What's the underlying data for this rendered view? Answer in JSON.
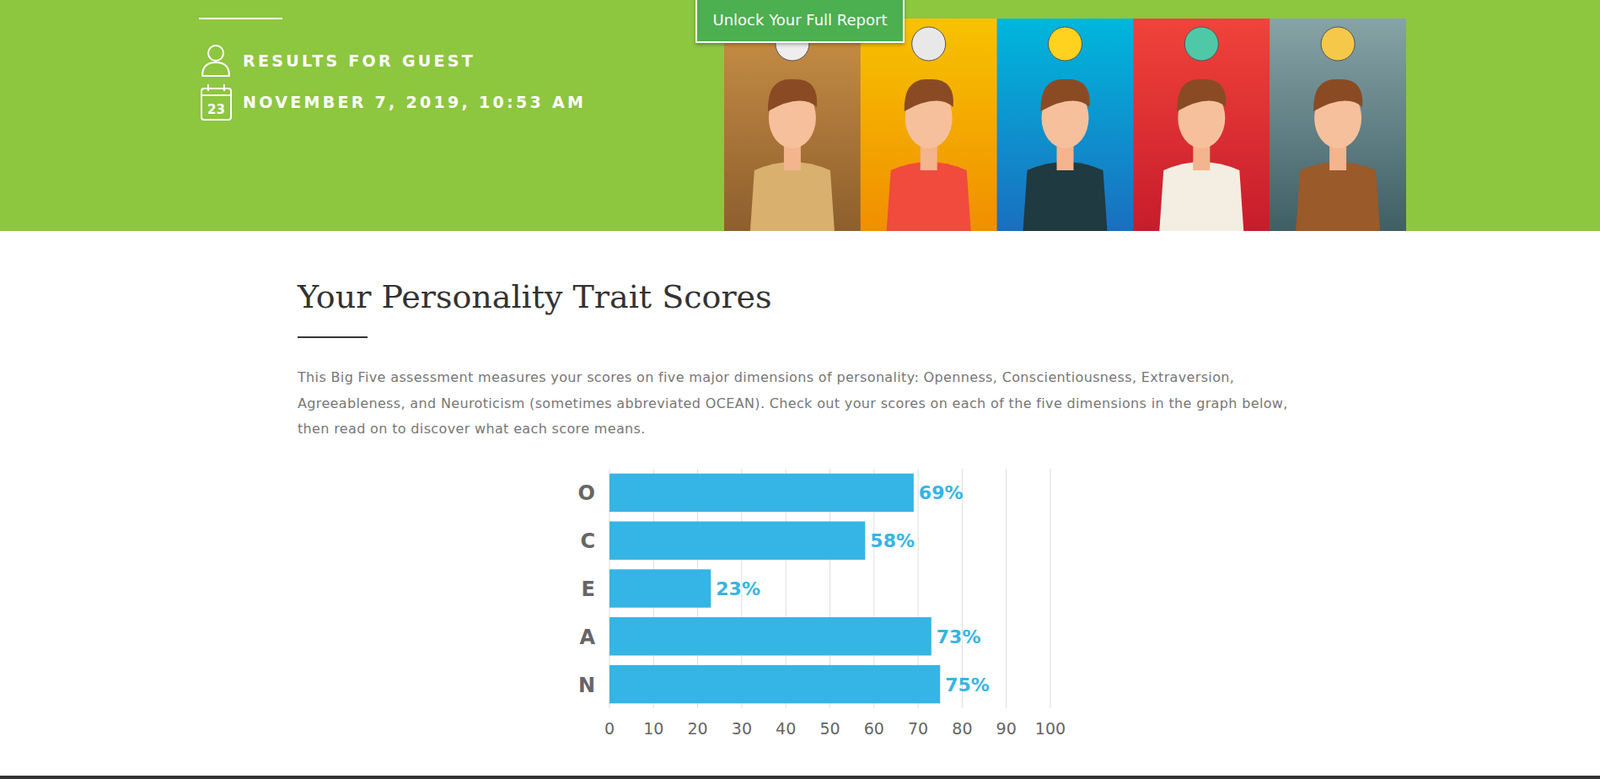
{
  "header": {
    "user": "RESULTS FOR GUEST",
    "calendar_day": "23",
    "date": "NOVEMBER 7, 2019, 10:53 AM",
    "button": "Unlock Your Full Report"
  },
  "section": {
    "title": "Your Personality Trait Scores",
    "text": "This Big Five assessment measures your scores on five major dimensions of personality: Openness, Conscientiousness, Extraversion, Agreeableness, and Neuroticism (sometimes abbreviated OCEAN). Check out your scores on each of the five dimensions in the graph below, then read on to discover what each score means."
  },
  "chart_data": {
    "type": "bar",
    "orientation": "horizontal",
    "categories": [
      "O",
      "C",
      "E",
      "A",
      "N"
    ],
    "values": [
      69,
      58,
      23,
      73,
      75
    ],
    "value_labels": [
      "69%",
      "58%",
      "23%",
      "73%",
      "75%"
    ],
    "color": "#35b5e5",
    "xlim": [
      0,
      100
    ],
    "xticks": [
      0,
      10,
      20,
      30,
      40,
      50,
      60,
      70,
      80,
      90,
      100
    ],
    "grid": true,
    "data_labels": true
  }
}
